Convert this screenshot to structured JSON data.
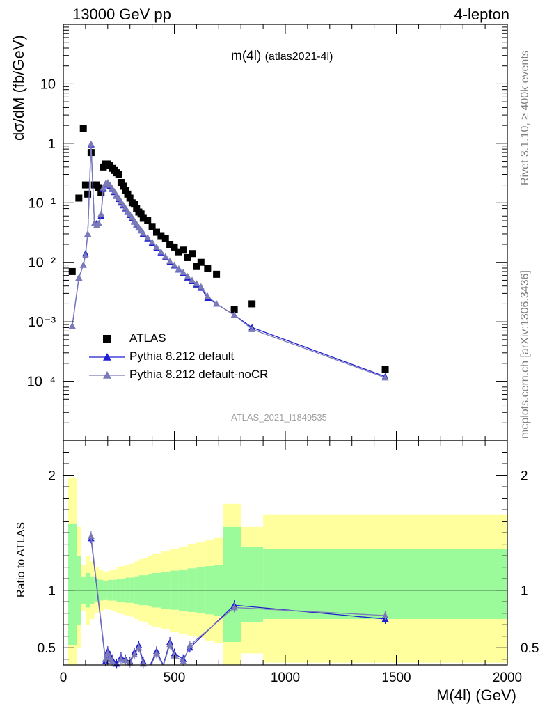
{
  "header": {
    "left": "13000 GeV pp",
    "right": "4-lepton"
  },
  "side_text": {
    "rivet": "Rivet 3.1.10, ≥ 400k events",
    "mcplots": "mcplots.cern.ch [arXiv:1306.3436]"
  },
  "colors": {
    "atlas": "#000000",
    "pythia_default": "#1f1fd1",
    "pythia_nocr": "#7a7ab8",
    "band_outer": "#ffff9e",
    "band_inner": "#9bfb9b"
  },
  "chart_data": [
    {
      "type": "scatter",
      "panel": "main",
      "title": "m(4l)",
      "title_note": "(atlas2021-4l)",
      "watermark": "ATLAS_2021_I1849535",
      "ylabel": "dσ/dM (fb/GeV)",
      "yscale": "log",
      "xlim": [
        0,
        2000
      ],
      "ylim": [
        1e-05,
        100
      ],
      "y_ticks": [
        "10⁻⁴",
        "10⁻³",
        "10⁻²",
        "10⁻¹",
        "1",
        "10"
      ],
      "legend_position": "bottom-left",
      "series": [
        {
          "name": "ATLAS",
          "marker": "square",
          "x": [
            40,
            70,
            90,
            100,
            110,
            125,
            140,
            150,
            160,
            170,
            180,
            190,
            200,
            210,
            220,
            230,
            240,
            250,
            260,
            270,
            280,
            290,
            300,
            310,
            320,
            330,
            340,
            350,
            360,
            380,
            400,
            420,
            440,
            460,
            480,
            500,
            520,
            540,
            560,
            580,
            600,
            620,
            650,
            690,
            770,
            850,
            1450
          ],
          "y": [
            0.007,
            0.12,
            1.8,
            0.2,
            0.14,
            0.7,
            0.2,
            0.2,
            0.18,
            0.15,
            0.4,
            0.45,
            0.45,
            0.42,
            0.38,
            0.35,
            0.32,
            0.3,
            0.22,
            0.19,
            0.16,
            0.14,
            0.12,
            0.1,
            0.095,
            0.08,
            0.07,
            0.065,
            0.055,
            0.05,
            0.04,
            0.032,
            0.028,
            0.025,
            0.02,
            0.018,
            0.015,
            0.016,
            0.012,
            0.014,
            0.0085,
            0.01,
            0.008,
            0.0063,
            0.0016,
            0.002,
            0.00016
          ]
        },
        {
          "name": "Pythia 8.212 default",
          "marker": "triangle",
          "x": [
            40,
            70,
            90,
            100,
            110,
            125,
            140,
            150,
            160,
            170,
            180,
            190,
            200,
            210,
            220,
            230,
            240,
            250,
            260,
            270,
            280,
            290,
            300,
            310,
            320,
            330,
            340,
            350,
            360,
            380,
            400,
            420,
            440,
            460,
            480,
            500,
            520,
            540,
            560,
            580,
            600,
            620,
            650,
            690,
            770,
            850,
            1450
          ],
          "y": [
            0.00085,
            0.0055,
            0.009,
            0.014,
            0.03,
            0.95,
            0.045,
            0.045,
            0.045,
            0.06,
            0.17,
            0.2,
            0.21,
            0.19,
            0.17,
            0.15,
            0.13,
            0.115,
            0.1,
            0.09,
            0.08,
            0.07,
            0.062,
            0.055,
            0.048,
            0.043,
            0.038,
            0.034,
            0.03,
            0.025,
            0.021,
            0.017,
            0.0145,
            0.012,
            0.01,
            0.0088,
            0.0075,
            0.0065,
            0.0055,
            0.0048,
            0.0042,
            0.0037,
            0.0025,
            0.002,
            0.0013,
            0.0008,
            0.00012
          ]
        },
        {
          "name": "Pythia 8.212 default-noCR",
          "marker": "triangle",
          "x": [
            40,
            70,
            90,
            100,
            110,
            125,
            140,
            150,
            160,
            170,
            180,
            190,
            200,
            210,
            220,
            230,
            240,
            250,
            260,
            270,
            280,
            290,
            300,
            310,
            320,
            330,
            340,
            350,
            360,
            380,
            400,
            420,
            440,
            460,
            480,
            500,
            520,
            540,
            560,
            580,
            600,
            620,
            650,
            690,
            770,
            850,
            1450
          ],
          "y": [
            0.00085,
            0.0055,
            0.009,
            0.013,
            0.03,
            0.98,
            0.045,
            0.042,
            0.045,
            0.065,
            0.18,
            0.21,
            0.22,
            0.2,
            0.175,
            0.155,
            0.135,
            0.12,
            0.105,
            0.092,
            0.082,
            0.072,
            0.064,
            0.057,
            0.05,
            0.044,
            0.039,
            0.035,
            0.031,
            0.026,
            0.022,
            0.018,
            0.015,
            0.0125,
            0.0105,
            0.009,
            0.0078,
            0.0068,
            0.0058,
            0.005,
            0.0044,
            0.0039,
            0.0027,
            0.002,
            0.0013,
            0.00075,
            0.000115
          ]
        }
      ]
    },
    {
      "type": "line",
      "panel": "ratio",
      "ylabel": "Ratio to ATLAS",
      "xlabel": "M(4l) (GeV)",
      "xlim": [
        0,
        2000
      ],
      "ylim": [
        0.35,
        2.3
      ],
      "x_ticks": [
        "0",
        "500",
        "1000",
        "1500",
        "2000"
      ],
      "y_ticks": [
        "0.5",
        "1",
        "2"
      ],
      "band_edges": [
        20,
        60,
        80,
        100,
        120,
        140,
        160,
        180,
        200,
        220,
        240,
        260,
        280,
        300,
        320,
        340,
        360,
        380,
        400,
        440,
        480,
        520,
        560,
        600,
        640,
        680,
        720,
        800,
        900,
        2000
      ],
      "band_outer_hi": [
        1.98,
        1.55,
        1.22,
        1.3,
        1.25,
        1.2,
        1.18,
        1.16,
        1.17,
        1.18,
        1.2,
        1.21,
        1.22,
        1.23,
        1.25,
        1.27,
        1.28,
        1.3,
        1.32,
        1.34,
        1.36,
        1.38,
        1.4,
        1.42,
        1.44,
        1.46,
        1.75,
        1.55,
        1.66
      ],
      "band_outer_lo": [
        0.35,
        0.5,
        0.82,
        0.7,
        0.75,
        0.8,
        0.82,
        0.84,
        0.83,
        0.82,
        0.8,
        0.79,
        0.78,
        0.77,
        0.75,
        0.73,
        0.72,
        0.7,
        0.68,
        0.66,
        0.64,
        0.62,
        0.6,
        0.58,
        0.56,
        0.54,
        0.35,
        0.45,
        0.37
      ],
      "band_inner_hi": [
        1.58,
        1.3,
        1.12,
        1.15,
        1.12,
        1.1,
        1.09,
        1.08,
        1.09,
        1.09,
        1.1,
        1.1,
        1.11,
        1.11,
        1.12,
        1.13,
        1.13,
        1.14,
        1.15,
        1.16,
        1.17,
        1.18,
        1.19,
        1.2,
        1.21,
        1.22,
        1.55,
        1.38,
        1.36
      ],
      "band_inner_lo": [
        0.52,
        0.7,
        0.88,
        0.85,
        0.88,
        0.9,
        0.91,
        0.92,
        0.91,
        0.91,
        0.9,
        0.9,
        0.89,
        0.89,
        0.88,
        0.87,
        0.87,
        0.86,
        0.85,
        0.84,
        0.83,
        0.82,
        0.81,
        0.8,
        0.79,
        0.78,
        0.55,
        0.72,
        0.75
      ],
      "series": [
        {
          "name": "Pythia 8.212 default",
          "x": [
            125,
            190,
            200,
            210,
            220,
            240,
            260,
            280,
            300,
            320,
            340,
            360,
            380,
            420,
            450,
            480,
            500,
            540,
            570,
            770,
            1450
          ],
          "y": [
            1.45,
            0.38,
            0.47,
            0.43,
            0.4,
            0.36,
            0.42,
            0.4,
            0.38,
            0.46,
            0.52,
            0.38,
            0.3,
            0.47,
            0.35,
            0.55,
            0.45,
            0.4,
            0.5,
            0.87,
            0.75
          ]
        },
        {
          "name": "Pythia 8.212 default-noCR",
          "x": [
            125,
            190,
            200,
            210,
            220,
            240,
            260,
            280,
            300,
            320,
            340,
            360,
            380,
            420,
            450,
            480,
            500,
            540,
            570,
            770,
            1450
          ],
          "y": [
            1.47,
            0.4,
            0.45,
            0.41,
            0.38,
            0.35,
            0.4,
            0.39,
            0.37,
            0.44,
            0.5,
            0.36,
            0.29,
            0.45,
            0.34,
            0.53,
            0.43,
            0.38,
            0.52,
            0.85,
            0.78
          ]
        }
      ]
    }
  ]
}
